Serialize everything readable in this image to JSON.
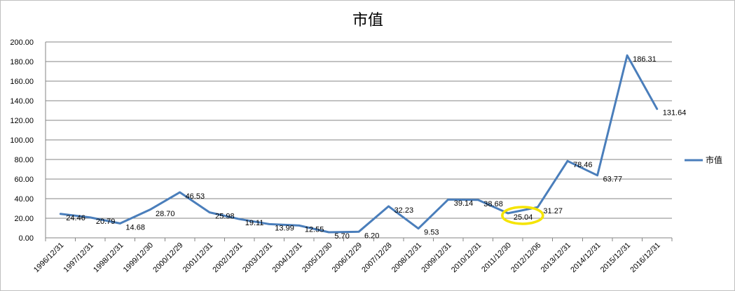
{
  "chart_data": {
    "type": "line",
    "title": "市值",
    "xlabel": "",
    "ylabel": "",
    "ylim": [
      0,
      200
    ],
    "ytick_step": 20,
    "ytick_labels": [
      "0.00",
      "20.00",
      "40.00",
      "60.00",
      "80.00",
      "100.00",
      "120.00",
      "140.00",
      "160.00",
      "180.00",
      "200.00"
    ],
    "grid": true,
    "legend_position": "right",
    "categories": [
      "1996/12/31",
      "1997/12/31",
      "1998/12/31",
      "1999/12/30",
      "2000/12/29",
      "2001/12/31",
      "2002/12/31",
      "2003/12/31",
      "2004/12/31",
      "2005/12/30",
      "2006/12/29",
      "2007/12/28",
      "2008/12/31",
      "2009/12/31",
      "2010/12/31",
      "2011/12/30",
      "2012/12/06",
      "2013/12/31",
      "2014/12/31",
      "2015/12/31",
      "2016/12/31"
    ],
    "series": [
      {
        "name": "市值",
        "color": "#4a7ebb",
        "values": [
          24.46,
          20.79,
          14.68,
          28.7,
          46.53,
          25.98,
          19.11,
          13.99,
          12.55,
          5.7,
          6.2,
          32.23,
          9.53,
          39.14,
          38.68,
          25.04,
          31.27,
          78.46,
          63.77,
          186.31,
          131.64
        ],
        "labels": [
          "24.46",
          "20.79",
          "14.68",
          "28.70",
          "46.53",
          "25.98",
          "19.11",
          "13.99",
          "12.55",
          "5.70",
          "6.20",
          "32.23",
          "9.53",
          "39.14",
          "38.68",
          "25.04",
          "31.27",
          "78.46",
          "63.77",
          "186.31",
          "131.64"
        ]
      }
    ],
    "highlight": {
      "category": "2011/12/30",
      "value": 25.04,
      "color": "#f5e400",
      "shape": "ellipse"
    }
  }
}
